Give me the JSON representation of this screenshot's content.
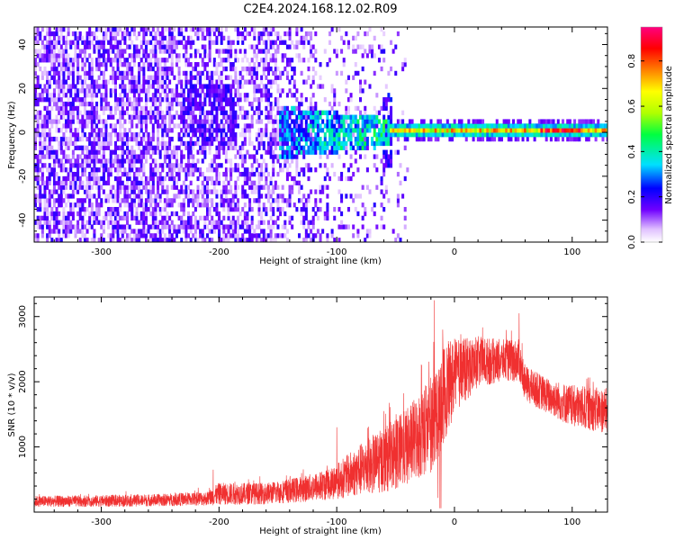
{
  "title": "C2E4.2024.168.12.02.R09",
  "colors": {
    "spectral_base": "#6a00f0",
    "snr_line": "#f03030",
    "axis": "#000000"
  },
  "chart_data": [
    {
      "type": "heatmap",
      "title": "C2E4.2024.168.12.02.R09",
      "xlabel": "Height of straight line (km)",
      "ylabel": "Frequency (Hz)",
      "xlim": [
        -357,
        130
      ],
      "ylim": [
        -50,
        48
      ],
      "xticks": [
        -300,
        -200,
        -100,
        0,
        100
      ],
      "yticks": [
        -40,
        -20,
        0,
        20,
        40
      ],
      "colorbar": {
        "label": "Normalized spectral amplitude",
        "range": [
          0.0,
          0.95
        ],
        "ticks": [
          0.0,
          0.2,
          0.4,
          0.6,
          0.8
        ],
        "colormap": "rainbow (white-purple-blue-cyan-green-yellow-red-magenta)"
      },
      "features": [
        {
          "description": "broadband noise",
          "x_range": [
            -357,
            -120
          ],
          "y_range": [
            -50,
            48
          ],
          "amplitude": 0.1
        },
        {
          "description": "noise cluster",
          "x_range": [
            -230,
            -185
          ],
          "y_range": [
            -10,
            22
          ],
          "amplitude": 0.15
        },
        {
          "description": "signal emerging",
          "x_range": [
            -150,
            -60
          ],
          "y_range": [
            -12,
            10
          ],
          "amplitude": 0.3
        },
        {
          "description": "vertical spike",
          "x_range": [
            -62,
            -55
          ],
          "y_range": [
            -18,
            18
          ],
          "amplitude": 0.25
        },
        {
          "description": "narrow echo line",
          "x_range": [
            -55,
            130
          ],
          "y_range": [
            -3,
            3
          ],
          "amplitude": 0.8
        }
      ]
    },
    {
      "type": "line",
      "xlabel": "Height of straight line (km)",
      "ylabel": "SNR (10 * v/v)",
      "xlim": [
        -357,
        130
      ],
      "ylim": [
        0,
        3300
      ],
      "xticks": [
        -300,
        -200,
        -100,
        0,
        100
      ],
      "yticks": [
        1000,
        2000,
        3000
      ],
      "envelope": {
        "x": [
          -357,
          -300,
          -250,
          -210,
          -200,
          -160,
          -130,
          -110,
          -100,
          -80,
          -60,
          -40,
          -20,
          -10,
          0,
          20,
          40,
          55,
          60,
          80,
          100,
          130
        ],
        "low": [
          80,
          80,
          90,
          100,
          110,
          120,
          150,
          180,
          200,
          250,
          300,
          400,
          600,
          1000,
          1500,
          1900,
          2000,
          2000,
          1700,
          1500,
          1300,
          1200
        ],
        "high": [
          250,
          260,
          280,
          320,
          450,
          450,
          550,
          650,
          750,
          1050,
          1300,
          1600,
          2100,
          2600,
          2650,
          2700,
          2650,
          2650,
          2250,
          2050,
          1950,
          1900
        ]
      },
      "spikes": [
        {
          "x": -205,
          "y": 650
        },
        {
          "x": -100,
          "y": 1300
        },
        {
          "x": -60,
          "y": 1550
        },
        {
          "x": -28,
          "y": 2250
        },
        {
          "x": -17,
          "y": 3250
        },
        {
          "x": -10,
          "y": 2800
        },
        {
          "x": 55,
          "y": 3050
        }
      ]
    }
  ]
}
